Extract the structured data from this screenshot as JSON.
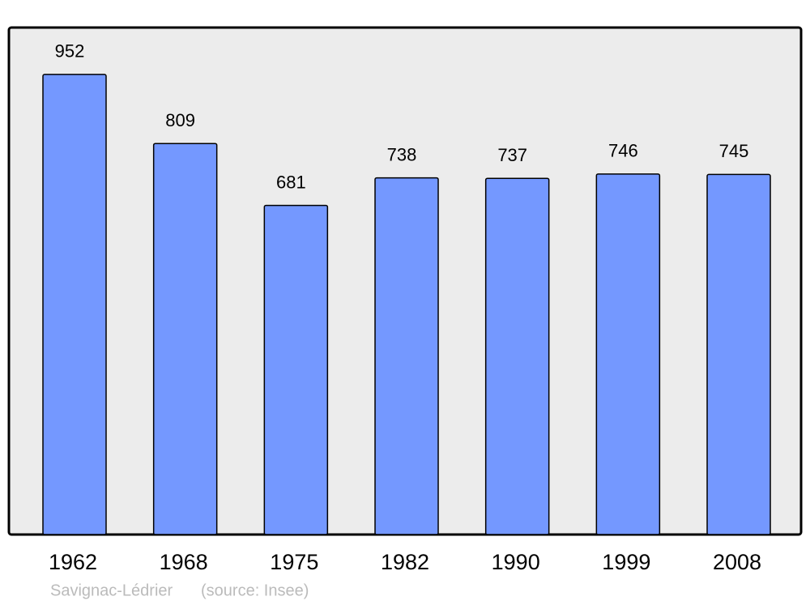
{
  "chart_data": {
    "type": "bar",
    "title": "Savignac-Lédrier",
    "source": "(source: Insee)",
    "categories": [
      "1962",
      "1968",
      "1975",
      "1982",
      "1990",
      "1999",
      "2008"
    ],
    "values": [
      952,
      809,
      681,
      738,
      737,
      746,
      745
    ],
    "color": "#7498ff",
    "ylim": [
      0,
      1049
    ]
  }
}
